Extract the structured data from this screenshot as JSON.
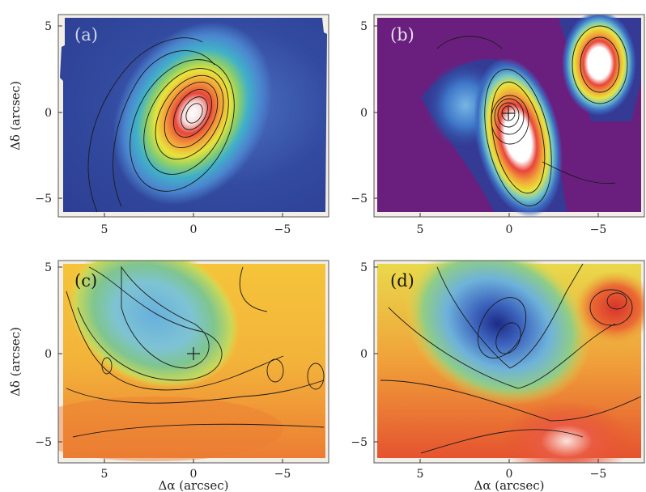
{
  "figure": {
    "panels": [
      {
        "label": "(a)",
        "label_color": "#d0d6ea"
      },
      {
        "label": "(b)",
        "label_color": "#e8dcef"
      },
      {
        "label": "(c)",
        "label_color": "#1a1a1a"
      },
      {
        "label": "(d)",
        "label_color": "#1a1a1a"
      }
    ],
    "x_axis_label": "Δα (arcsec)",
    "y_axis_label": "Δδ (arcsec)",
    "x_ticks": [
      "5",
      "0",
      "−5"
    ],
    "y_ticks": [
      "5",
      "0",
      "−5"
    ],
    "colors": {
      "panel_a_background": "#2e3f9a",
      "panel_b_background": "#6a1f7e",
      "contour_line": "#1a1a1a"
    }
  }
}
